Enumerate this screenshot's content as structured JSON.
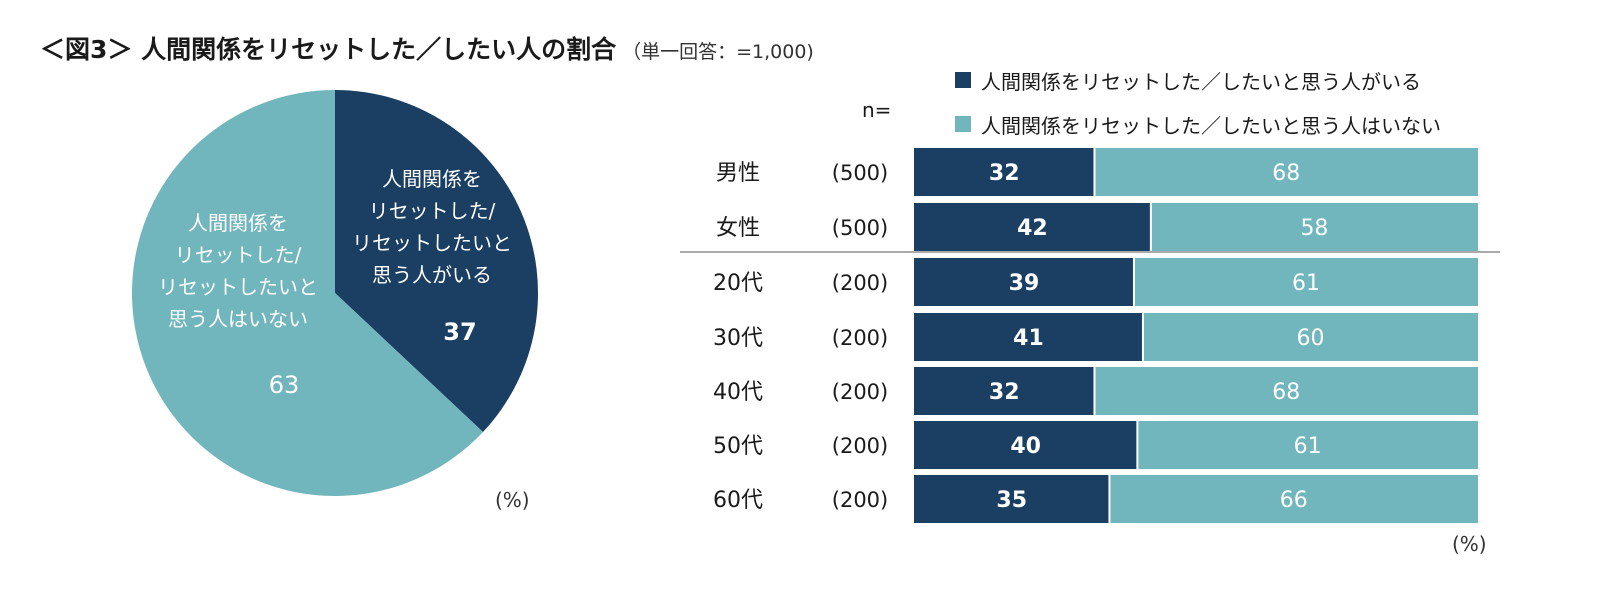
{
  "title": {
    "main": "＜図3＞ 人間関係をリセットした／したい人の割合",
    "sub": "（単一回答：=1,000)"
  },
  "colors": {
    "dark": "#1a3f63",
    "light": "#72b6bd"
  },
  "legend": {
    "item1": "人間関係をリセットした／したいと思う人がいる",
    "item2": "人間関係をリセットした／したいと思う人はいない"
  },
  "n_label": "n=",
  "pie_unit": "(%)",
  "bar_unit": "(%)",
  "chart_data": [
    {
      "type": "pie",
      "slices": [
        {
          "label_lines": [
            "人間関係を",
            "リセットした/",
            "リセットしたいと",
            "思う人がいる"
          ],
          "value": 37,
          "color": "#1a3f63"
        },
        {
          "label_lines": [
            "人間関係を",
            "リセットした/",
            "リセットしたいと",
            "思う人はいない"
          ],
          "value": 63,
          "color": "#72b6bd"
        }
      ]
    },
    {
      "type": "bar",
      "orientation": "horizontal",
      "stacked": true,
      "categories": [
        "男性",
        "女性",
        "20代",
        "30代",
        "40代",
        "50代",
        "60代"
      ],
      "n": [
        "(500)",
        "(500)",
        "(200)",
        "(200)",
        "(200)",
        "(200)",
        "(200)"
      ],
      "series": [
        {
          "name": "人間関係をリセットした／したいと思う人がいる",
          "values": [
            32,
            42,
            39,
            41,
            32,
            40,
            35
          ],
          "color": "#1a3f63"
        },
        {
          "name": "人間関係をリセットした／したいと思う人はいない",
          "values": [
            68,
            58,
            61,
            60,
            68,
            61,
            66
          ],
          "color": "#72b6bd"
        }
      ]
    }
  ]
}
